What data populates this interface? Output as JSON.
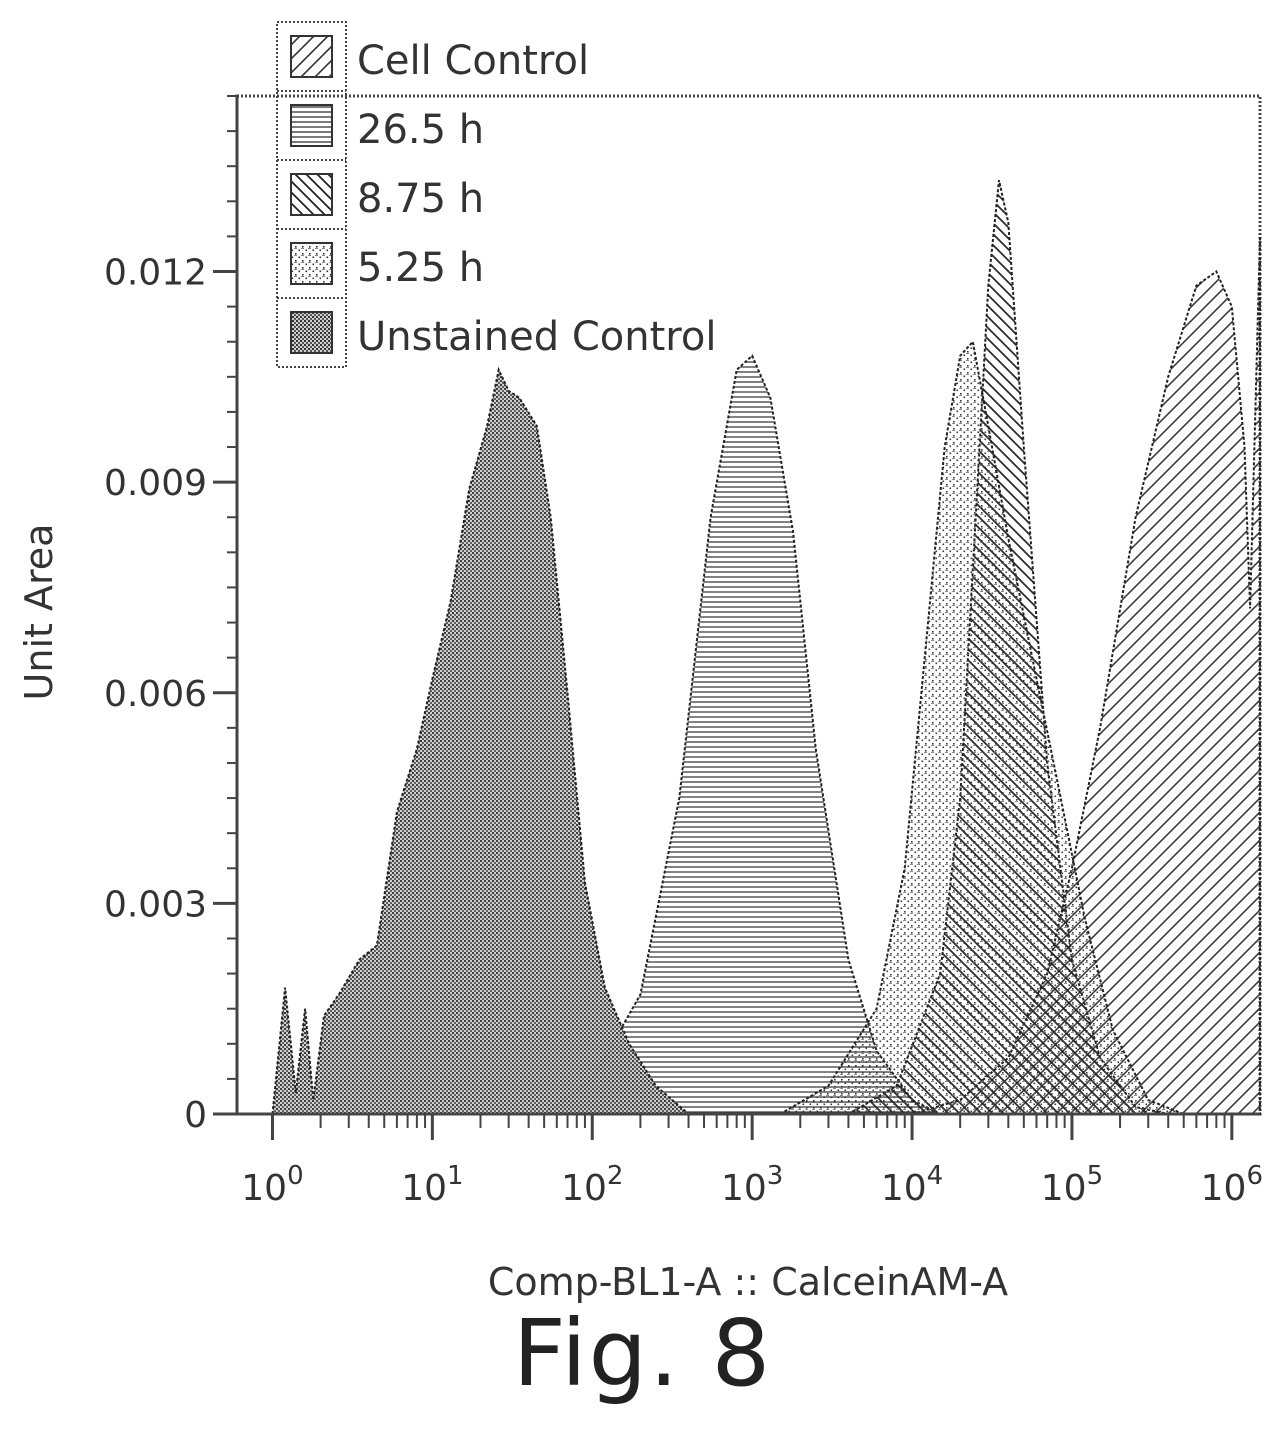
{
  "figure_caption": "Fig. 8",
  "chart_data": {
    "type": "area",
    "title": "",
    "xlabel": "Comp-BL1-A :: CalceinAM-A",
    "ylabel": "Unit Area",
    "xscale": "log",
    "xlim": [
      0.6,
      1500000
    ],
    "ylim": [
      0,
      0.0145
    ],
    "x_ticks": [
      {
        "value": 1,
        "base": "10",
        "exp": "0"
      },
      {
        "value": 10,
        "base": "10",
        "exp": "1"
      },
      {
        "value": 100,
        "base": "10",
        "exp": "2"
      },
      {
        "value": 1000,
        "base": "10",
        "exp": "3"
      },
      {
        "value": 10000,
        "base": "10",
        "exp": "4"
      },
      {
        "value": 100000,
        "base": "10",
        "exp": "5"
      },
      {
        "value": 1000000,
        "base": "10",
        "exp": "6"
      }
    ],
    "y_ticks": [
      {
        "value": 0,
        "label": "0"
      },
      {
        "value": 0.003,
        "label": "0.003"
      },
      {
        "value": 0.006,
        "label": "0.006"
      },
      {
        "value": 0.009,
        "label": "0.009"
      },
      {
        "value": 0.012,
        "label": "0.012"
      }
    ],
    "grid": false,
    "legend_position": "top-left",
    "series": [
      {
        "name": "Cell Control",
        "pattern": "diagonal-up",
        "points": [
          [
            10000,
            0
          ],
          [
            20000,
            0.0002
          ],
          [
            40000,
            0.0008
          ],
          [
            70000,
            0.002
          ],
          [
            100000,
            0.0035
          ],
          [
            150000,
            0.0055
          ],
          [
            250000,
            0.0085
          ],
          [
            400000,
            0.0105
          ],
          [
            600000,
            0.0118
          ],
          [
            800000,
            0.012
          ],
          [
            1000000,
            0.0115
          ],
          [
            1200000,
            0.0095
          ],
          [
            1300000,
            0.0072
          ],
          [
            1500000,
            0.0125
          ]
        ]
      },
      {
        "name": "26.5 h",
        "pattern": "horizontal",
        "points": [
          [
            50,
            0
          ],
          [
            100,
            0.0005
          ],
          [
            200,
            0.0017
          ],
          [
            350,
            0.0045
          ],
          [
            550,
            0.0085
          ],
          [
            800,
            0.0106
          ],
          [
            1000,
            0.0108
          ],
          [
            1300,
            0.0102
          ],
          [
            1800,
            0.0083
          ],
          [
            2500,
            0.0052
          ],
          [
            4000,
            0.0022
          ],
          [
            6000,
            0.0009
          ],
          [
            10000,
            0.0002
          ],
          [
            15000,
            0
          ]
        ]
      },
      {
        "name": "8.75 h",
        "pattern": "diagonal-down",
        "points": [
          [
            4000,
            0
          ],
          [
            8000,
            0.0004
          ],
          [
            15000,
            0.002
          ],
          [
            20000,
            0.0045
          ],
          [
            25000,
            0.0085
          ],
          [
            30000,
            0.0118
          ],
          [
            35000,
            0.0133
          ],
          [
            40000,
            0.0127
          ],
          [
            50000,
            0.0095
          ],
          [
            70000,
            0.005
          ],
          [
            100000,
            0.0022
          ],
          [
            150000,
            0.0008
          ],
          [
            250000,
            0.0001
          ],
          [
            400000,
            0
          ]
        ]
      },
      {
        "name": "5.25 h",
        "pattern": "dots",
        "points": [
          [
            1500,
            0
          ],
          [
            3000,
            0.0004
          ],
          [
            6000,
            0.0015
          ],
          [
            9000,
            0.0035
          ],
          [
            12000,
            0.0065
          ],
          [
            16000,
            0.0095
          ],
          [
            20000,
            0.0108
          ],
          [
            24000,
            0.011
          ],
          [
            30000,
            0.0098
          ],
          [
            40000,
            0.0082
          ],
          [
            60000,
            0.0062
          ],
          [
            80000,
            0.0048
          ],
          [
            120000,
            0.0028
          ],
          [
            180000,
            0.0012
          ],
          [
            300000,
            0.0002
          ],
          [
            500000,
            0
          ]
        ]
      },
      {
        "name": "Unstained Control",
        "pattern": "dense-dots",
        "points": [
          [
            1,
            0
          ],
          [
            1.2,
            0.0018
          ],
          [
            1.4,
            0.0003
          ],
          [
            1.6,
            0.0015
          ],
          [
            1.8,
            0.0002
          ],
          [
            2.1,
            0.0014
          ],
          [
            2.6,
            0.0017
          ],
          [
            3.5,
            0.0022
          ],
          [
            4.5,
            0.0024
          ],
          [
            6,
            0.0043
          ],
          [
            8,
            0.0052
          ],
          [
            10,
            0.0062
          ],
          [
            13,
            0.0073
          ],
          [
            17,
            0.0089
          ],
          [
            22,
            0.0098
          ],
          [
            26,
            0.0106
          ],
          [
            30,
            0.0103
          ],
          [
            35,
            0.0102
          ],
          [
            45,
            0.0098
          ],
          [
            55,
            0.0085
          ],
          [
            70,
            0.006
          ],
          [
            90,
            0.0033
          ],
          [
            120,
            0.0018
          ],
          [
            170,
            0.001
          ],
          [
            250,
            0.0004
          ],
          [
            400,
            0
          ]
        ]
      }
    ]
  }
}
